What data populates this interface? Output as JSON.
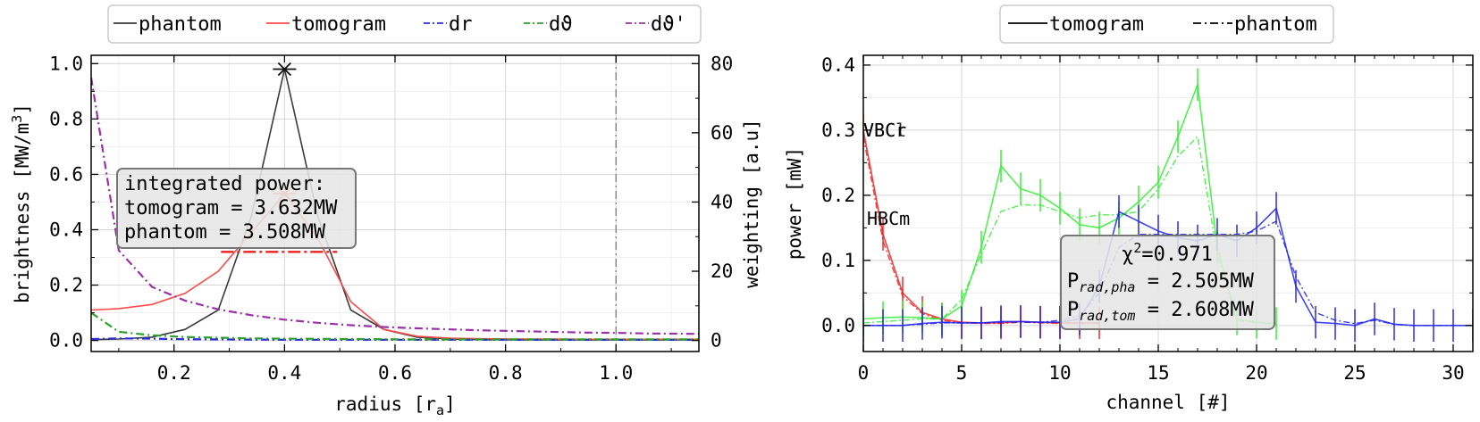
{
  "left_legend": [
    {
      "label": "phantom",
      "color": "#3a3a3a",
      "dash": "solid"
    },
    {
      "label": "tomogram",
      "color": "#ff4a4a",
      "dash": "solid"
    },
    {
      "label": "dr",
      "color": "#2b2bdd",
      "dash": "dashdot"
    },
    {
      "label": "dϑ",
      "color": "#2ca02c",
      "dash": "dashdot"
    },
    {
      "label": "dϑ'",
      "color": "#9b30a8",
      "dash": "dashdot"
    }
  ],
  "right_legend": [
    {
      "label": "tomogram",
      "dash": "solid"
    },
    {
      "label": "phantom",
      "dash": "dashdot"
    }
  ],
  "left_annotation": {
    "line1": "integrated power:",
    "line2": "tomogram = 3.632MW",
    "line3": "phantom = 3.508MW"
  },
  "right_annotation": {
    "chi_prefix": "χ",
    "chi_sup": "2",
    "chi_value": "=0.971",
    "pha_P": "P",
    "pha_sub": "rad,pha",
    "pha_value": " = 2.505MW",
    "tom_P": "P",
    "tom_sub": "rad,tom",
    "tom_value": " = 2.608MW"
  },
  "channel_labels": [
    {
      "text": "VBCr",
      "color": "#ff2020"
    },
    {
      "text": "VBCl",
      "color": "#22cc22"
    },
    {
      "text": "HBCm",
      "color": "#1a1aee"
    }
  ],
  "chart_data": [
    {
      "type": "line",
      "xlabel": "radius [r",
      "xlabel_sub": "a",
      "xlabel_end": "]",
      "ylabel": "brightness [MW/m",
      "ylabel_sup": "3",
      "ylabel_end": "]",
      "y2label": "weighting [a.u]",
      "xlim": [
        0.05,
        1.15
      ],
      "ylim": [
        -0.04,
        1.03
      ],
      "y2lim": [
        -3.2,
        82.4
      ],
      "xticks": [
        "0.2",
        "0.4",
        "0.6",
        "0.8",
        "1.0"
      ],
      "xtick_values": [
        0.2,
        0.4,
        0.6,
        0.8,
        1.0
      ],
      "yticks": [
        "0.0",
        "0.2",
        "0.4",
        "0.6",
        "0.8",
        "1.0"
      ],
      "ytick_values": [
        0.0,
        0.2,
        0.4,
        0.6,
        0.8,
        1.0
      ],
      "y2ticks": [
        "0",
        "20",
        "40",
        "60",
        "80"
      ],
      "y2tick_values": [
        0,
        20,
        40,
        60,
        80
      ],
      "grid": true,
      "vline_x": 1.0,
      "series": [
        {
          "name": "phantom",
          "color": "#3a3a3a",
          "axis": "left",
          "dash": "solid",
          "x": [
            0.05,
            0.1,
            0.16,
            0.22,
            0.28,
            0.34,
            0.4,
            0.46,
            0.52,
            0.58,
            0.64,
            0.7,
            0.76,
            0.82,
            0.88,
            0.94,
            1.0,
            1.06,
            1.15
          ],
          "y": [
            0.003,
            0.005,
            0.012,
            0.04,
            0.11,
            0.45,
            0.98,
            0.45,
            0.11,
            0.04,
            0.012,
            0.005,
            0.003,
            0.002,
            0.002,
            0.002,
            0.002,
            0.002,
            0.002
          ]
        },
        {
          "name": "tomogram",
          "color": "#ff4a4a",
          "axis": "left",
          "dash": "solid",
          "x": [
            0.05,
            0.1,
            0.16,
            0.22,
            0.28,
            0.34,
            0.4,
            0.46,
            0.52,
            0.58,
            0.64,
            0.7,
            0.76,
            0.82,
            0.88,
            0.94,
            1.0,
            1.06,
            1.15
          ],
          "y": [
            0.11,
            0.115,
            0.13,
            0.17,
            0.25,
            0.39,
            0.53,
            0.37,
            0.14,
            0.04,
            0.015,
            0.008,
            0.006,
            0.005,
            0.005,
            0.004,
            0.004,
            0.004,
            0.004
          ]
        },
        {
          "name": "dr",
          "color": "#2b2bdd",
          "axis": "right",
          "dash": "dashdot",
          "x": [
            0.05,
            0.1,
            0.16,
            0.22,
            0.28,
            0.34,
            0.4,
            0.52,
            0.64,
            0.76,
            0.88,
            1.0,
            1.15
          ],
          "y": [
            0.4,
            0.6,
            0.5,
            0.35,
            0.3,
            0.25,
            0.2,
            0.2,
            0.2,
            0.2,
            0.2,
            0.2,
            0.2
          ]
        },
        {
          "name": "dϑ",
          "color": "#2ca02c",
          "axis": "right",
          "dash": "dashdot",
          "x": [
            0.05,
            0.1,
            0.16,
            0.22,
            0.28,
            0.34,
            0.4,
            0.52,
            0.64,
            0.76,
            0.88,
            1.0,
            1.15
          ],
          "y": [
            8.0,
            2.5,
            1.5,
            1.0,
            0.8,
            0.6,
            0.5,
            0.4,
            0.3,
            0.3,
            0.3,
            0.3,
            0.3
          ]
        },
        {
          "name": "dϑ'",
          "color": "#9b30a8",
          "axis": "right",
          "dash": "dashdot",
          "x": [
            0.05,
            0.1,
            0.16,
            0.22,
            0.28,
            0.34,
            0.4,
            0.46,
            0.52,
            0.58,
            0.64,
            0.7,
            0.76,
            0.82,
            0.88,
            0.94,
            1.0,
            1.06,
            1.15
          ],
          "y": [
            76.0,
            26.0,
            15.5,
            11.5,
            9.0,
            7.3,
            6.0,
            5.1,
            4.4,
            3.9,
            3.5,
            3.2,
            2.9,
            2.7,
            2.5,
            2.3,
            2.2,
            2.0,
            1.9
          ]
        }
      ],
      "markers": [
        {
          "x": 0.4,
          "y": 0.98,
          "color": "#111111",
          "axis": "left"
        },
        {
          "x": 0.4,
          "y": 0.53,
          "color": "#ff4a4a",
          "axis": "left"
        }
      ],
      "hbars": [
        {
          "x0": 0.285,
          "x1": 0.495,
          "y": 0.32,
          "color": "#ee2020"
        }
      ]
    },
    {
      "type": "line",
      "xlabel": "channel [#]",
      "ylabel": "power [mW]",
      "xlim": [
        0,
        31
      ],
      "ylim": [
        -0.04,
        0.415
      ],
      "xticks": [
        "0",
        "5",
        "10",
        "15",
        "20",
        "25",
        "30"
      ],
      "xtick_values": [
        0,
        5,
        10,
        15,
        20,
        25,
        30
      ],
      "yticks": [
        "0.0",
        "0.1",
        "0.2",
        "0.3",
        "0.4"
      ],
      "ytick_values": [
        0.0,
        0.1,
        0.2,
        0.3,
        0.4
      ],
      "grid": true,
      "groups": [
        {
          "name": "VBCr",
          "color": "#ee2222",
          "x": [
            0,
            1,
            2,
            3,
            4,
            5,
            6,
            7,
            8,
            9,
            10,
            11,
            12
          ],
          "tomogram": [
            0.3,
            0.14,
            0.05,
            0.02,
            0.01,
            0.005,
            0.004,
            0.004,
            0.006,
            0.005,
            0.004,
            0.004,
            0.004
          ],
          "phantom": [
            0.29,
            0.13,
            0.045,
            0.018,
            0.008,
            0.004,
            0.003,
            0.003,
            0.005,
            0.004,
            0.003,
            0.003,
            0.003
          ],
          "err": 0.025
        },
        {
          "name": "VBCl",
          "color": "#33ee33",
          "x": [
            0,
            1,
            2,
            3,
            4,
            5,
            6,
            7,
            8,
            9,
            10,
            11,
            12,
            13,
            14,
            15,
            16,
            17,
            18,
            19,
            20,
            21
          ],
          "tomogram": [
            0.01,
            0.012,
            0.013,
            0.012,
            0.01,
            0.03,
            0.12,
            0.245,
            0.21,
            0.2,
            0.18,
            0.155,
            0.15,
            0.165,
            0.19,
            0.22,
            0.29,
            0.37,
            0.12,
            0.01,
            0.005,
            0.003
          ],
          "phantom": [
            0.004,
            0.006,
            0.008,
            0.01,
            0.01,
            0.04,
            0.11,
            0.175,
            0.185,
            0.185,
            0.175,
            0.165,
            0.17,
            0.17,
            0.175,
            0.21,
            0.26,
            0.29,
            0.11,
            0.008,
            0.004,
            0.002
          ],
          "err": 0.025
        },
        {
          "name": "HBCm",
          "color": "#2222ee",
          "x": [
            0,
            1,
            2,
            3,
            4,
            5,
            6,
            7,
            8,
            9,
            10,
            11,
            12,
            13,
            14,
            15,
            16,
            17,
            18,
            19,
            20,
            21,
            22,
            23,
            24,
            25,
            26,
            27,
            28,
            29,
            30,
            31
          ],
          "tomogram": [
            0.0,
            0.0,
            0.0,
            0.003,
            0.005,
            0.004,
            0.004,
            0.006,
            0.006,
            0.005,
            0.005,
            0.01,
            0.06,
            0.175,
            0.16,
            0.145,
            0.135,
            0.13,
            0.14,
            0.13,
            0.15,
            0.18,
            0.06,
            0.005,
            0.003,
            0.0,
            0.01,
            0.002,
            0.0,
            0.0,
            0.0,
            0.0
          ],
          "phantom": [
            0.0,
            0.0,
            0.0,
            0.002,
            0.004,
            0.004,
            0.004,
            0.005,
            0.005,
            0.005,
            0.008,
            0.015,
            0.05,
            0.12,
            0.14,
            0.14,
            0.14,
            0.14,
            0.14,
            0.14,
            0.145,
            0.16,
            0.075,
            0.02,
            0.008,
            0.003,
            0.008,
            0.002,
            0.0,
            0.0,
            0.0,
            0.0
          ],
          "err": 0.025
        }
      ]
    }
  ]
}
